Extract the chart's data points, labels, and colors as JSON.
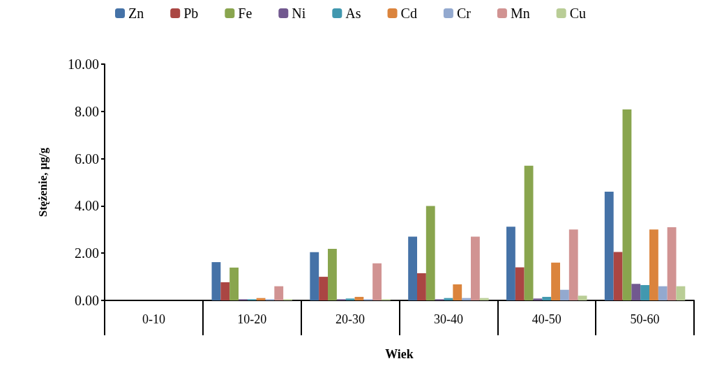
{
  "chart_data": {
    "type": "bar",
    "xlabel": "Wiek",
    "ylabel": "Stężenie, µg/g",
    "categories": [
      "0-10",
      "10-20",
      "20-30",
      "30-40",
      "40-50",
      "50-60"
    ],
    "series": [
      {
        "name": "Zn",
        "color": "#4572a7",
        "values": [
          null,
          1.62,
          2.04,
          2.7,
          3.12,
          4.6
        ]
      },
      {
        "name": "Pb",
        "color": "#aa4643",
        "values": [
          null,
          0.77,
          1.0,
          1.15,
          1.4,
          2.05
        ]
      },
      {
        "name": "Fe",
        "color": "#89a54e",
        "values": [
          null,
          1.39,
          2.18,
          4.0,
          5.7,
          8.08
        ]
      },
      {
        "name": "Ni",
        "color": "#71588f",
        "values": [
          null,
          0.05,
          0.05,
          0.05,
          0.08,
          0.7
        ]
      },
      {
        "name": "As",
        "color": "#4198af",
        "values": [
          null,
          0.05,
          0.08,
          0.1,
          0.15,
          0.65
        ]
      },
      {
        "name": "Cd",
        "color": "#db843d",
        "values": [
          null,
          0.1,
          0.15,
          0.68,
          1.6,
          3.0
        ]
      },
      {
        "name": "Cr",
        "color": "#93a9cf",
        "values": [
          null,
          0.05,
          0.05,
          0.1,
          0.45,
          0.6
        ]
      },
      {
        "name": "Mn",
        "color": "#d19392",
        "values": [
          null,
          0.6,
          1.57,
          2.7,
          3.0,
          3.1
        ]
      },
      {
        "name": "Cu",
        "color": "#b9cd96",
        "values": [
          null,
          0.05,
          0.05,
          0.1,
          0.2,
          0.6
        ]
      }
    ],
    "ylim": [
      0,
      10
    ],
    "yticks": [
      {
        "value": 0,
        "label": "0.00"
      },
      {
        "value": 2,
        "label": "2.00"
      },
      {
        "value": 4,
        "label": "4.00"
      },
      {
        "value": 6,
        "label": "6.00"
      },
      {
        "value": 8,
        "label": "8.00"
      },
      {
        "value": 10,
        "label": "10.00"
      }
    ],
    "grid": false,
    "legend": "top"
  }
}
